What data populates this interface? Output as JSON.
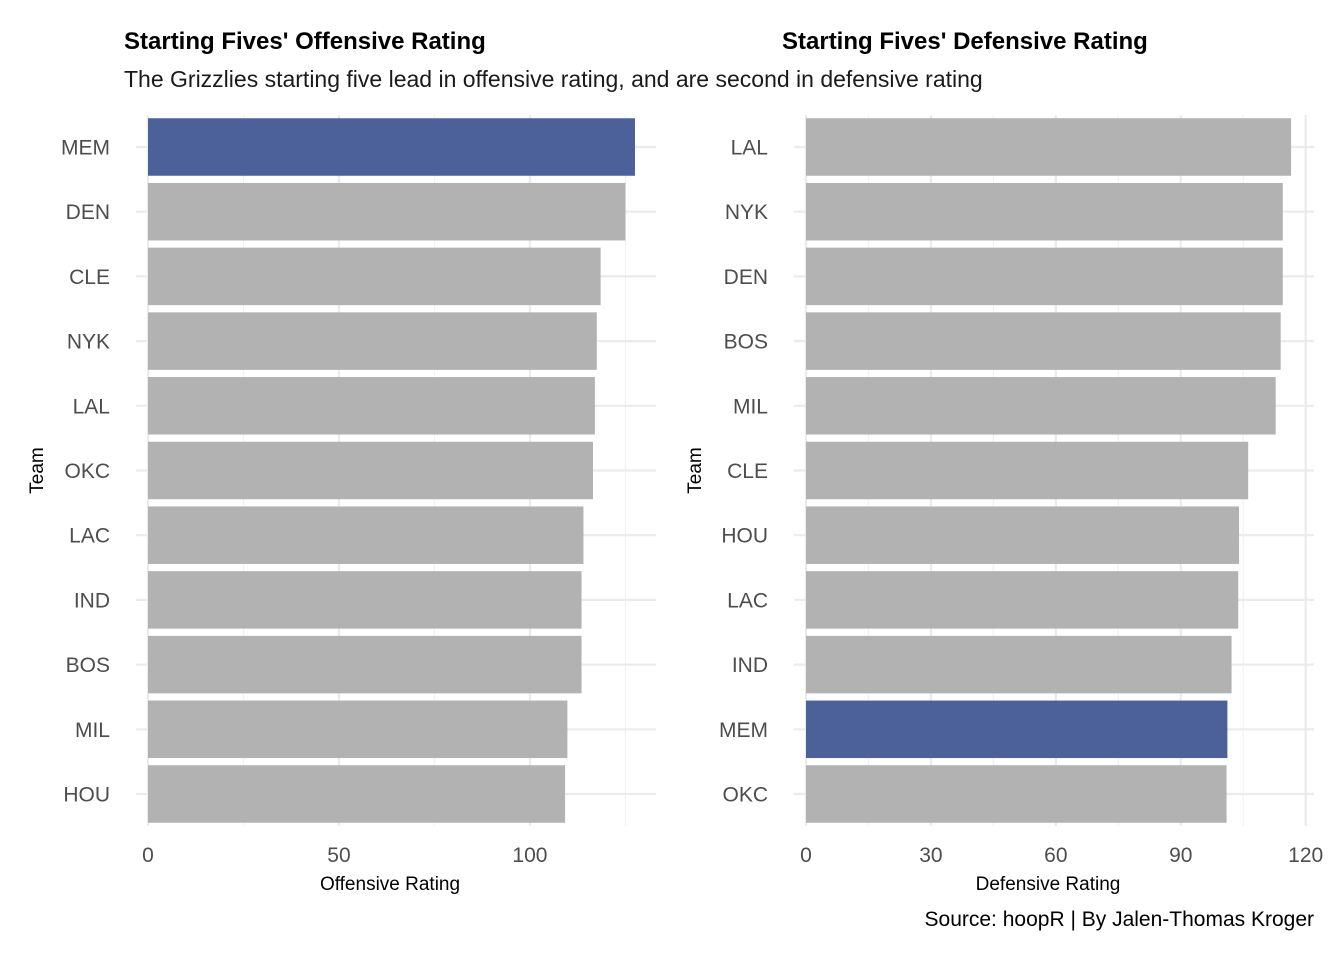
{
  "subtitle": "The Grizzlies starting five lead in offensive rating, and are second in defensive rating",
  "caption": "Source: hoopR | By Jalen-Thomas Kroger",
  "colors": {
    "highlight": "#4C6199",
    "default": "#B2B2B2",
    "grid": "#EBEBEB"
  },
  "chart_data": [
    {
      "type": "bar",
      "orientation": "horizontal",
      "title": "Starting Fives' Offensive Rating",
      "xlabel": "Offensive Rating",
      "ylabel": "Team",
      "xlim": [
        0,
        133
      ],
      "xticks": [
        0,
        50,
        100
      ],
      "highlight": "MEM",
      "categories": [
        "MEM",
        "DEN",
        "CLE",
        "NYK",
        "LAL",
        "OKC",
        "LAC",
        "IND",
        "BOS",
        "MIL",
        "HOU"
      ],
      "values": [
        127.5,
        125.0,
        118.5,
        117.5,
        117.0,
        116.5,
        114.0,
        113.5,
        113.5,
        109.8,
        109.2
      ]
    },
    {
      "type": "bar",
      "orientation": "horizontal",
      "title": "Starting Fives' Defensive Rating",
      "xlabel": "Defensive Rating",
      "ylabel": "Team",
      "xlim": [
        0,
        122
      ],
      "xticks": [
        0,
        30,
        60,
        90,
        120
      ],
      "highlight": "MEM",
      "categories": [
        "LAL",
        "NYK",
        "DEN",
        "BOS",
        "MIL",
        "CLE",
        "HOU",
        "LAC",
        "IND",
        "MEM",
        "OKC"
      ],
      "values": [
        116.5,
        114.5,
        114.5,
        114.0,
        112.8,
        106.2,
        104.0,
        103.8,
        102.2,
        101.2,
        101.0
      ]
    }
  ]
}
